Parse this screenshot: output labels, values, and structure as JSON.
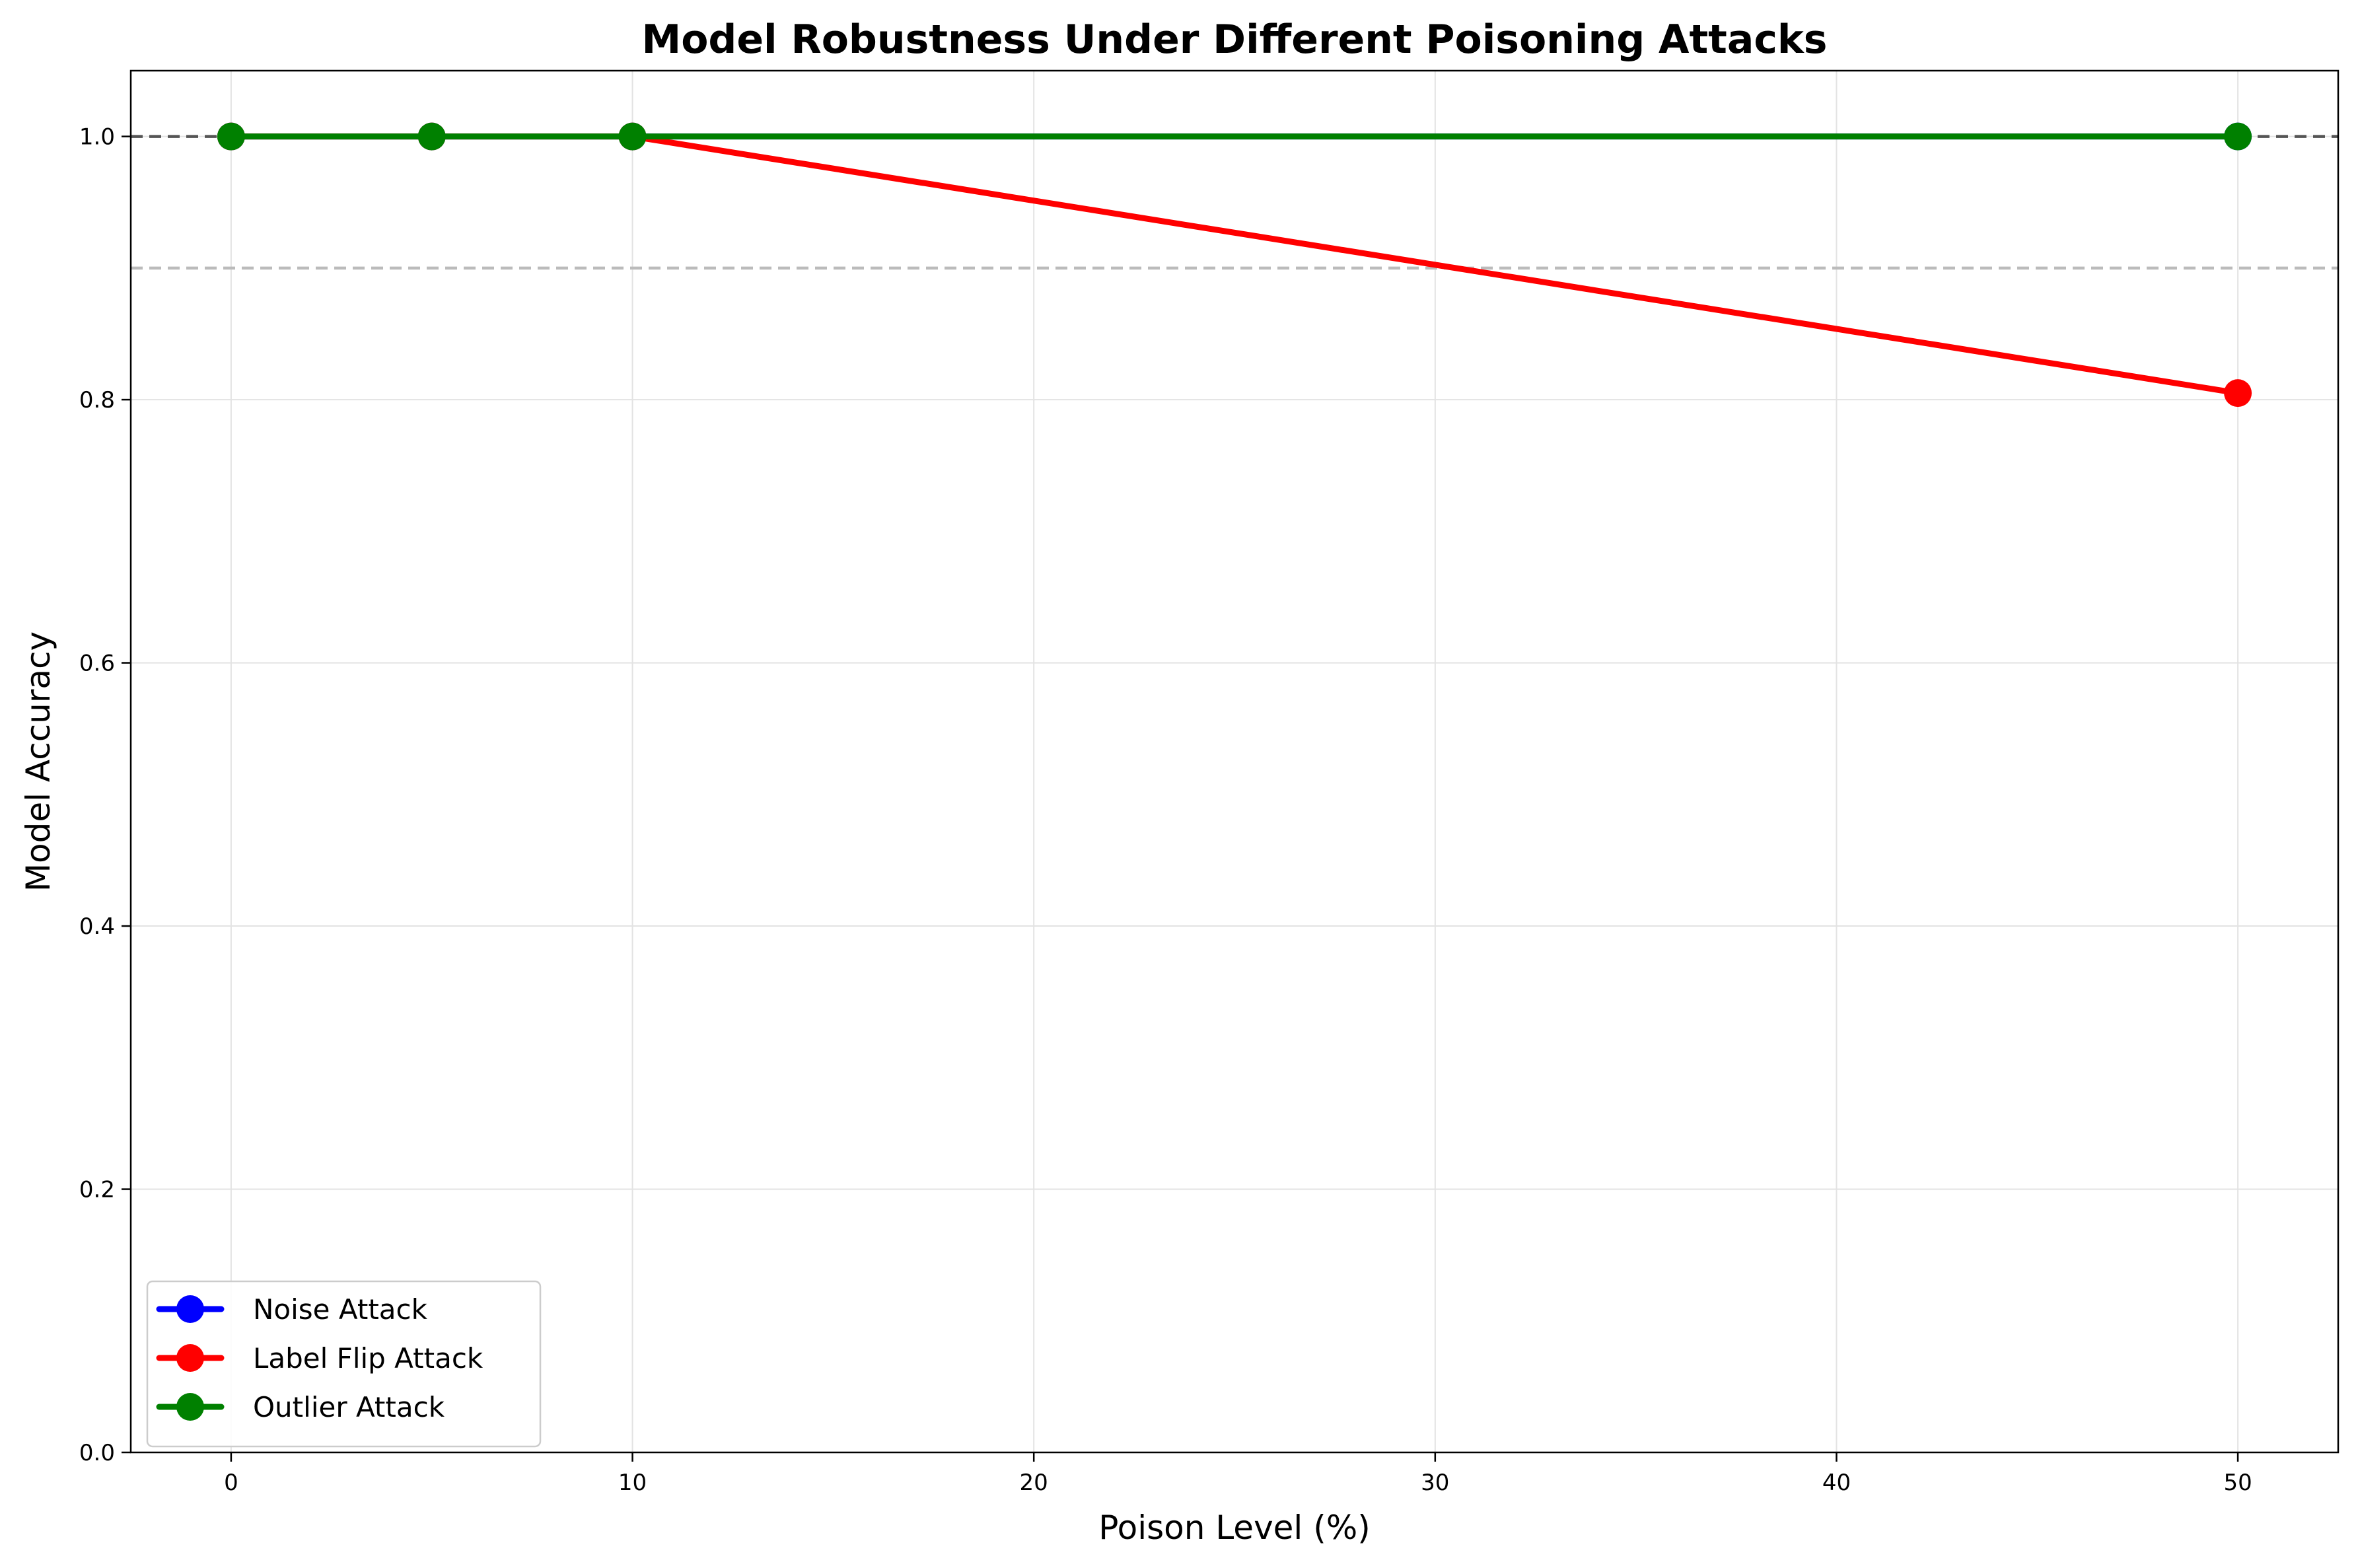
{
  "chart_data": {
    "type": "line",
    "title": "Model Robustness Under Different Poisoning Attacks",
    "xlabel": "Poison Level (%)",
    "ylabel": "Model Accuracy",
    "xlim": [
      -2.5,
      52.5
    ],
    "ylim": [
      0.0,
      1.05
    ],
    "x_ticks": [
      0,
      10,
      20,
      30,
      40,
      50
    ],
    "y_ticks": [
      0.0,
      0.2,
      0.4,
      0.6,
      0.8,
      1.0
    ],
    "grid": true,
    "legend_position": "lower-left",
    "reference_lines": [
      {
        "y": 1.0,
        "style": "dashed",
        "color": "#555555"
      },
      {
        "y": 0.9,
        "style": "dashed",
        "color": "#bbbbbb"
      }
    ],
    "series": [
      {
        "name": "Noise Attack",
        "color": "#0000ff",
        "x": [
          0,
          5,
          10,
          50
        ],
        "y": [
          1.0,
          1.0,
          1.0,
          1.0
        ]
      },
      {
        "name": "Label Flip Attack",
        "color": "#ff0000",
        "x": [
          0,
          5,
          10,
          50
        ],
        "y": [
          1.0,
          1.0,
          1.0,
          0.805
        ]
      },
      {
        "name": "Outlier Attack",
        "color": "#008000",
        "x": [
          0,
          5,
          10,
          50
        ],
        "y": [
          1.0,
          1.0,
          1.0,
          1.0
        ]
      }
    ]
  }
}
